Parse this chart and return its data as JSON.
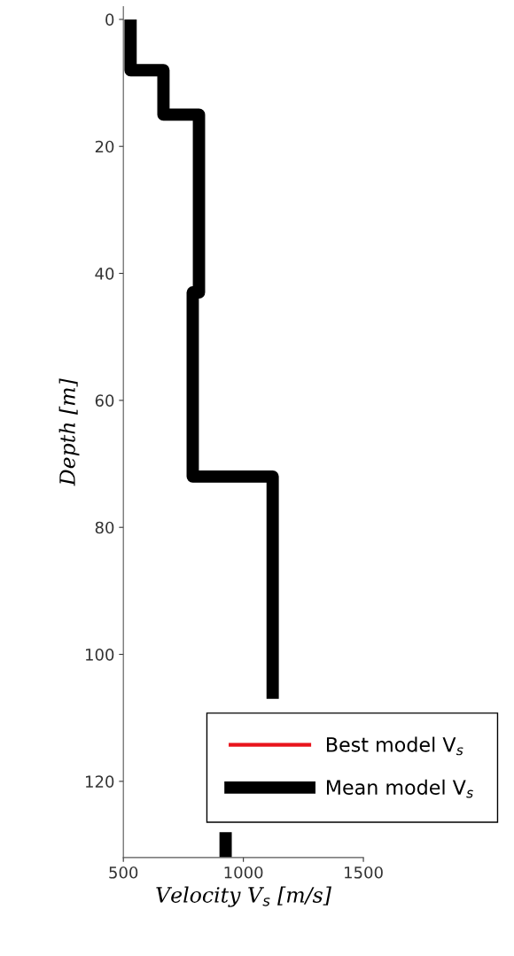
{
  "chart_data": {
    "type": "line",
    "xlabel": "Velocity V$_{s}$ [m/s]",
    "ylabel": "Depth [m]",
    "xlim": [
      500,
      1500
    ],
    "xticks": [
      500,
      1000,
      1500
    ],
    "ylim": [
      132,
      -2
    ],
    "yticks": [
      0,
      20,
      40,
      60,
      80,
      100,
      120
    ],
    "grid": false,
    "legend": "bottom right",
    "marker": "none",
    "line_style": "solid",
    "series": [
      {
        "name": "Best model V$_{s}$",
        "color": "#e8141c"
      },
      {
        "name": "Mean model V$_{s}$",
        "color": "#000000",
        "x": [
          530,
          530,
          667,
          667,
          815,
          815,
          789,
          789,
          1122,
          1122,
          null,
          926,
          926
        ],
        "values": [
          0,
          8,
          8,
          15,
          15,
          43,
          43,
          72,
          72,
          107,
          null,
          128,
          132
        ]
      }
    ]
  }
}
